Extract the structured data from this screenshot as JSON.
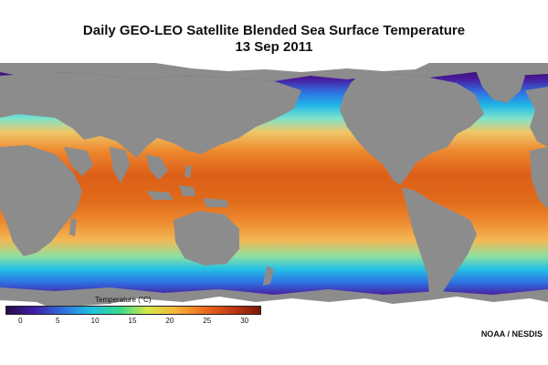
{
  "title": "Daily GEO-LEO Satellite Blended Sea Surface Temperature",
  "date": "13 Sep 2011",
  "legend": {
    "title": "Temperature (°C)",
    "ticks": [
      "0",
      "5",
      "10",
      "15",
      "20",
      "25",
      "30"
    ],
    "range": [
      -2,
      32
    ],
    "colors": [
      "#2a0a4a",
      "#3e1fa6",
      "#2f6fe0",
      "#1fc1e0",
      "#35d98f",
      "#d6e84a",
      "#f5b43a",
      "#ee6d1f",
      "#c23a13",
      "#7a1508"
    ]
  },
  "credit": "NOAA / NESDIS",
  "map": {
    "land_color": "#8c8c8c",
    "ice_color": "#ffffff"
  }
}
